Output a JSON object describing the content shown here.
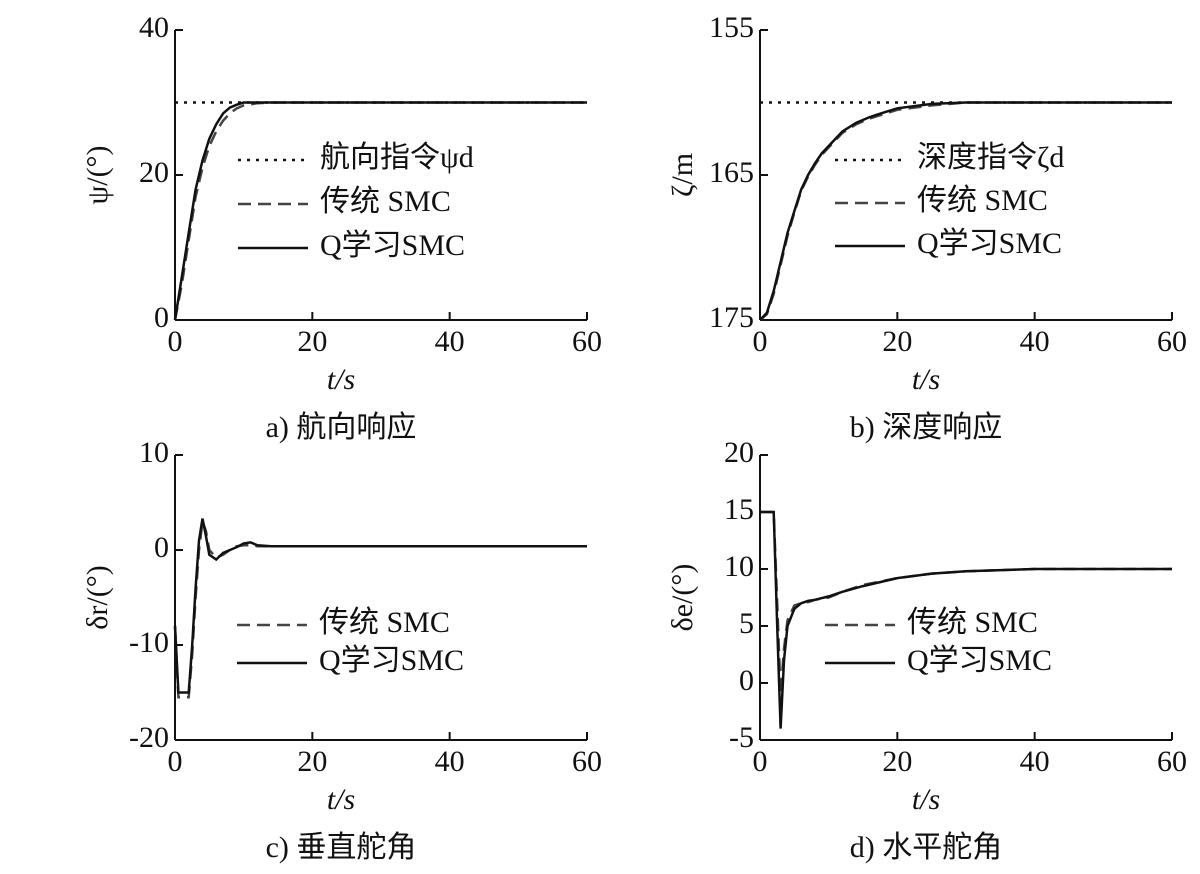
{
  "chart_data": [
    {
      "type": "line",
      "caption": "a)   航向响应",
      "xlabel": "t/s",
      "ylabel": "ψ/(°)",
      "xlim": [
        0,
        60
      ],
      "xticks": [
        0,
        20,
        40,
        60
      ],
      "ylim": [
        0,
        40
      ],
      "yticks": [
        0,
        20,
        40
      ],
      "x": [
        0,
        1,
        2,
        3,
        4,
        5,
        6,
        7,
        8,
        9,
        10,
        12,
        14,
        16,
        18,
        20,
        25,
        30,
        40,
        50,
        60
      ],
      "series": [
        {
          "name": "航向指令ψd",
          "color": "#111111",
          "dash": "dotted",
          "values": [
            30,
            30,
            30,
            30,
            30,
            30,
            30,
            30,
            30,
            30,
            30,
            30,
            30,
            30,
            30,
            30,
            30,
            30,
            30,
            30,
            30
          ]
        },
        {
          "name": "传统 SMC",
          "color": "#444444",
          "dash": "dashed",
          "values": [
            0,
            5,
            11,
            17,
            21,
            24,
            26,
            27.5,
            28.5,
            29.2,
            29.6,
            29.9,
            30,
            30,
            30,
            30,
            30,
            30,
            30,
            30,
            30
          ]
        },
        {
          "name": "Q学习SMC",
          "color": "#111111",
          "dash": "solid",
          "values": [
            0,
            6,
            12,
            18,
            22,
            25,
            27,
            28.5,
            29.3,
            29.7,
            30,
            30,
            30,
            30,
            30,
            30,
            30,
            30,
            30,
            30,
            30
          ]
        }
      ]
    },
    {
      "type": "line",
      "caption": "b)   深度响应",
      "xlabel": "t/s",
      "ylabel": "ζ/m",
      "xlim": [
        0,
        60
      ],
      "xticks": [
        0,
        20,
        40,
        60
      ],
      "ylim": [
        175,
        155
      ],
      "yticks": [
        155,
        165,
        175
      ],
      "x": [
        0,
        1,
        2,
        3,
        4,
        5,
        6,
        7,
        8,
        9,
        10,
        12,
        14,
        16,
        18,
        20,
        25,
        30,
        40,
        50,
        60
      ],
      "series": [
        {
          "name": "深度指令ζd",
          "color": "#111111",
          "dash": "dotted",
          "values": [
            160,
            160,
            160,
            160,
            160,
            160,
            160,
            160,
            160,
            160,
            160,
            160,
            160,
            160,
            160,
            160,
            160,
            160,
            160,
            160,
            160
          ]
        },
        {
          "name": "传统 SMC",
          "color": "#444444",
          "dash": "dashed",
          "values": [
            175,
            174.6,
            173.2,
            171.2,
            169.2,
            167.6,
            166.1,
            165.1,
            164.3,
            163.6,
            163.1,
            162.1,
            161.5,
            161.1,
            160.8,
            160.5,
            160.2,
            160,
            160,
            160,
            160
          ]
        },
        {
          "name": "Q学习SMC",
          "color": "#111111",
          "dash": "solid",
          "values": [
            175,
            174.5,
            173,
            171,
            169,
            167.5,
            166,
            165,
            164.2,
            163.5,
            163,
            162,
            161.4,
            161,
            160.7,
            160.4,
            160.1,
            160,
            160,
            160,
            160
          ]
        }
      ]
    },
    {
      "type": "line",
      "caption": "c)   垂直舵角",
      "xlabel": "t/s",
      "ylabel": "δr/(°)",
      "xlim": [
        0,
        60
      ],
      "xticks": [
        0,
        20,
        40,
        60
      ],
      "ylim": [
        -20,
        10
      ],
      "yticks": [
        -20,
        -10,
        0,
        10
      ],
      "x": [
        0,
        0.5,
        1,
        2,
        2.5,
        3,
        3.5,
        4,
        4.5,
        5,
        6,
        7,
        8,
        9,
        10,
        11,
        12,
        14,
        20,
        30,
        40,
        50,
        60
      ],
      "series": [
        {
          "name": "传统 SMC",
          "color": "#444444",
          "dash": "dashed",
          "values": [
            -8,
            -15.5,
            -15.5,
            -15.5,
            -11,
            -5,
            0,
            3,
            2,
            0,
            -0.8,
            -0.5,
            0,
            0.4,
            0.5,
            0.5,
            0.4,
            0.4,
            0.4,
            0.4,
            0.4,
            0.4,
            0.4
          ]
        },
        {
          "name": "Q学习SMC",
          "color": "#111111",
          "dash": "solid",
          "values": [
            -8,
            -15,
            -15,
            -15,
            -10,
            -4,
            1,
            3.3,
            1.5,
            -0.5,
            -1,
            -0.3,
            0,
            0.3,
            0.7,
            0.8,
            0.5,
            0.4,
            0.4,
            0.4,
            0.4,
            0.4,
            0.4
          ]
        }
      ]
    },
    {
      "type": "line",
      "caption": "d)   水平舵角",
      "xlabel": "t/s",
      "ylabel": "δe/(°)",
      "xlim": [
        0,
        60
      ],
      "xticks": [
        0,
        20,
        40,
        60
      ],
      "ylim": [
        -5,
        20
      ],
      "yticks": [
        -5,
        0,
        5,
        10,
        15,
        20
      ],
      "x": [
        0,
        0.5,
        1,
        2,
        2.5,
        3,
        3.5,
        4,
        5,
        6,
        7,
        8,
        10,
        12,
        15,
        20,
        25,
        30,
        40,
        50,
        60
      ],
      "series": [
        {
          "name": "传统 SMC",
          "color": "#444444",
          "dash": "dashed",
          "values": [
            15,
            15,
            15,
            15,
            7,
            -1,
            3,
            5.5,
            6.8,
            7,
            7.1,
            7.3,
            7.5,
            8,
            8.6,
            9.2,
            9.6,
            9.8,
            10,
            10,
            10
          ]
        },
        {
          "name": "Q学习SMC",
          "color": "#111111",
          "dash": "solid",
          "values": [
            15,
            15,
            15,
            15,
            5,
            -4,
            2,
            5,
            6.5,
            7,
            7.2,
            7.3,
            7.6,
            8,
            8.5,
            9.2,
            9.6,
            9.8,
            10,
            10,
            10
          ]
        }
      ]
    }
  ]
}
